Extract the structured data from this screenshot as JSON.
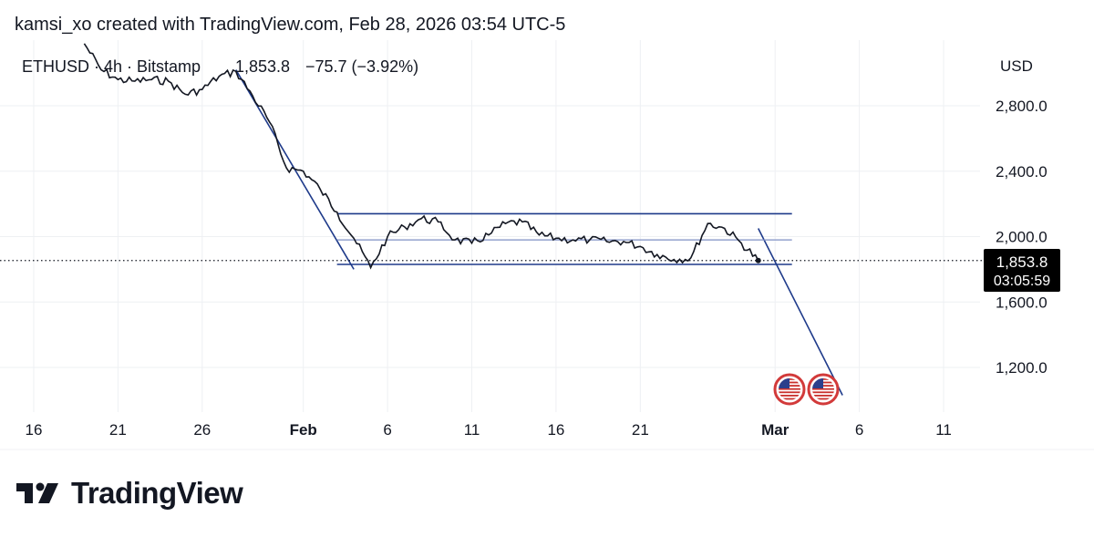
{
  "header": {
    "attribution": "kamsi_xo created with TradingView.com, Feb 28, 2026 03:54 UTC-5"
  },
  "legend": {
    "symbol": "ETHUSD · 4h · Bitstamp",
    "last": "1,853.8",
    "change": "−75.7 (−3.92%)"
  },
  "axis": {
    "currency": "USD",
    "y_ticks": [
      "2,800.0",
      "2,400.0",
      "2,000.0",
      "1,600.0",
      "1,200.0"
    ],
    "x_ticks": [
      "16",
      "21",
      "26",
      "Feb",
      "6",
      "11",
      "16",
      "21",
      "Mar",
      "6",
      "11"
    ]
  },
  "price_tag": {
    "price": "1,853.8",
    "countdown": "03:05:59"
  },
  "logo": {
    "text": "TradingView"
  },
  "colors": {
    "price_line": "#131722",
    "trend_line": "#1e3a8a",
    "mid_line": "#7f8fc4",
    "grid": "#eef0f3",
    "tag_bg": "#000000"
  },
  "chart_data": {
    "type": "line",
    "title": "",
    "series": [
      {
        "name": "ETHUSD",
        "x": [
          "2026-01-19",
          "2026-01-20",
          "2026-01-21",
          "2026-01-22",
          "2026-01-23",
          "2026-01-24",
          "2026-01-25",
          "2026-01-26",
          "2026-01-27",
          "2026-01-28",
          "2026-01-29",
          "2026-01-30",
          "2026-01-31",
          "2026-02-01",
          "2026-02-02",
          "2026-02-03",
          "2026-02-04",
          "2026-02-05",
          "2026-02-06",
          "2026-02-07",
          "2026-02-08",
          "2026-02-09",
          "2026-02-10",
          "2026-02-11",
          "2026-02-12",
          "2026-02-13",
          "2026-02-14",
          "2026-02-15",
          "2026-02-16",
          "2026-02-17",
          "2026-02-18",
          "2026-02-19",
          "2026-02-20",
          "2026-02-21",
          "2026-02-22",
          "2026-02-23",
          "2026-02-24",
          "2026-02-25",
          "2026-02-26",
          "2026-02-27",
          "2026-02-28"
        ],
        "y": [
          3180,
          3020,
          2960,
          2950,
          2960,
          2950,
          2870,
          2900,
          2980,
          3010,
          2860,
          2700,
          2420,
          2400,
          2290,
          2150,
          1990,
          1810,
          2000,
          2060,
          2110,
          2090,
          1980,
          1960,
          2010,
          2080,
          2090,
          2010,
          1990,
          1980,
          1980,
          1970,
          1970,
          1940,
          1890,
          1860,
          1870,
          2080,
          2050,
          1960,
          1853.8
        ]
      }
    ],
    "annotations": {
      "descending_channel": [
        {
          "from": [
            "2026-01-28",
            3020
          ],
          "to": [
            "2026-02-04",
            1800
          ]
        },
        {
          "from": [
            "2026-02-28",
            2050
          ],
          "to": [
            "2026-03-05",
            1030
          ]
        }
      ],
      "range_top": {
        "from": "2026-02-03",
        "to": "2026-03-02",
        "y": 2140
      },
      "range_mid": {
        "from": "2026-02-03",
        "to": "2026-03-02",
        "y": 1980
      },
      "range_bottom": {
        "from": "2026-02-03",
        "to": "2026-03-02",
        "y": 1830
      }
    },
    "ylim": [
      1000,
      3200
    ],
    "x_range": [
      "2026-01-14",
      "2026-03-13"
    ],
    "grid": true,
    "current_price": 1853.8,
    "events": [
      "US economic event",
      "US economic event"
    ]
  }
}
